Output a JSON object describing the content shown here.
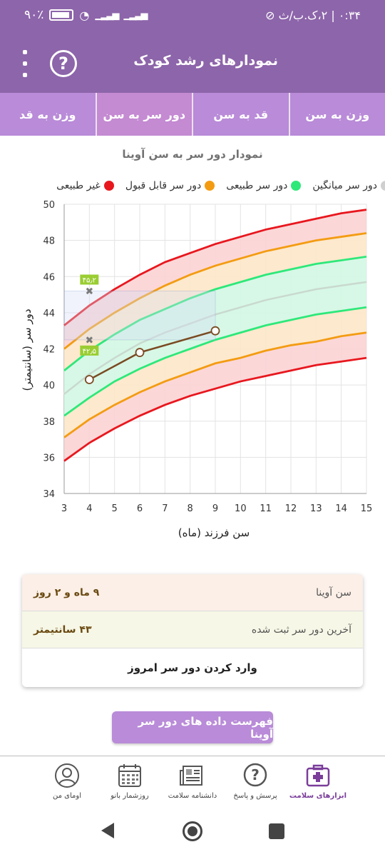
{
  "status_bar": {
    "time": "۰:۳۴",
    "date": "۲،ک.ب/ث",
    "battery": "۹۰٪"
  },
  "app_bar": {
    "title": "نمودارهای رشد کودک",
    "help_icon": "question-circle-icon",
    "menu_icon": "more-vertical-icon"
  },
  "tabs": [
    {
      "label": "وزن به سن",
      "active": false
    },
    {
      "label": "قد به سن",
      "active": false
    },
    {
      "label": "دور سر به سن",
      "active": true
    },
    {
      "label": "وزن به قد",
      "active": false
    }
  ],
  "chart_title": "نمودار دور سر به سن آوینا",
  "legend": [
    {
      "label": "غیر طبیعی",
      "color": "#e8171e"
    },
    {
      "label": "دور سر قابل قبول",
      "color": "#f39c12"
    },
    {
      "label": "دور سر طبیعی",
      "color": "#2ee87a"
    },
    {
      "label": "دور سر میانگین",
      "color": "#cfcfcf"
    }
  ],
  "chart_data": {
    "type": "line",
    "ylabel": "دور سر (سانتیمتر)",
    "xlabel": "سن فرزند (ماه)",
    "xlim": [
      3,
      15
    ],
    "ylim": [
      34,
      50
    ],
    "x_ticks": [
      "3",
      "4",
      "5",
      "6",
      "7",
      "8",
      "9",
      "10",
      "11",
      "12",
      "13",
      "14",
      "15"
    ],
    "y_ticks": [
      "34",
      "36",
      "38",
      "40",
      "42",
      "44",
      "46",
      "48",
      "50"
    ],
    "grid": true,
    "x": [
      3,
      4,
      5,
      6,
      7,
      8,
      9,
      10,
      11,
      12,
      13,
      14,
      15
    ],
    "series": [
      {
        "name": "غیر طبیعی",
        "color": "#e8171e",
        "values": [
          43.3,
          44.4,
          45.3,
          46.1,
          46.8,
          47.3,
          47.8,
          48.2,
          48.6,
          48.9,
          49.2,
          49.5,
          49.7
        ]
      },
      {
        "name": "دور سر قابل قبول",
        "color": "#f39c12",
        "values": [
          42.0,
          43.1,
          44.0,
          44.8,
          45.5,
          46.1,
          46.6,
          47.0,
          47.4,
          47.7,
          48.0,
          48.2,
          48.4
        ]
      },
      {
        "name": "دور سر طبیعی",
        "color": "#2ee87a",
        "values": [
          40.8,
          41.9,
          42.8,
          43.6,
          44.2,
          44.8,
          45.3,
          45.7,
          46.1,
          46.4,
          46.7,
          46.9,
          47.1
        ]
      },
      {
        "name": "دور سر میانگین",
        "color": "#c9d9cf",
        "values": [
          39.5,
          40.6,
          41.5,
          42.3,
          42.9,
          43.4,
          43.9,
          44.3,
          44.7,
          45.0,
          45.3,
          45.5,
          45.7
        ]
      },
      {
        "name": "دور سر طبیعی",
        "color": "#2ee87a",
        "values": [
          38.3,
          39.3,
          40.2,
          40.9,
          41.5,
          42.0,
          42.5,
          42.9,
          43.3,
          43.6,
          43.9,
          44.1,
          44.3
        ]
      },
      {
        "name": "دور سر قابل قبول",
        "color": "#f39c12",
        "values": [
          37.1,
          38.1,
          38.9,
          39.6,
          40.2,
          40.7,
          41.2,
          41.5,
          41.9,
          42.2,
          42.4,
          42.7,
          42.9
        ]
      },
      {
        "name": "غیر طبیعی",
        "color": "#e8171e",
        "values": [
          35.8,
          36.8,
          37.6,
          38.3,
          38.9,
          39.4,
          39.8,
          40.2,
          40.5,
          40.8,
          41.1,
          41.3,
          41.5
        ]
      }
    ],
    "child_series": {
      "color": "#7a4a22",
      "x": [
        4,
        6,
        9
      ],
      "values": [
        40.3,
        41.8,
        43.0
      ]
    },
    "range_markers": {
      "upper": "۴۵٫۲",
      "lower": "۴۲٫۵",
      "upper_value": 45.2,
      "lower_value": 42.5,
      "x": 4
    }
  },
  "info": {
    "age_label": "سن آوینا",
    "age_value": "۹ ماه و ۲ روز",
    "last_label": "آخرین دور سر ثبت شده",
    "last_value": "۴۳ سانتیمتر",
    "enter_label": "وارد کردن دور سر امروز"
  },
  "list_button": "فهرست داده های دور سر آوینا",
  "bottom_nav": [
    {
      "label": "ابزارهای سلامت",
      "icon": "medical-kit-icon",
      "active": true
    },
    {
      "label": "پرسش و پاسخ",
      "icon": "question-bubble-icon",
      "active": false
    },
    {
      "label": "دانشنامه سلامت",
      "icon": "newspaper-icon",
      "active": false
    },
    {
      "label": "روزشمار بانو",
      "icon": "calendar-icon",
      "active": false
    },
    {
      "label": "اومای من",
      "icon": "profile-icon",
      "active": false
    }
  ]
}
